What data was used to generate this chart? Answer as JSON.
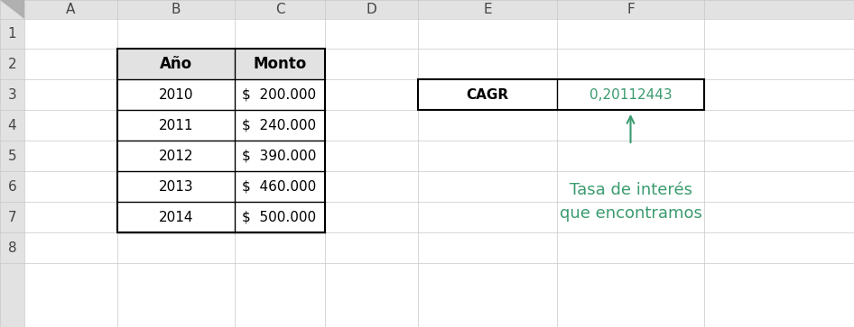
{
  "bg_color": "#ffffff",
  "grid_line_color": "#c8c8c8",
  "header_bg_color": "#e2e2e2",
  "cell_border_color": "#000000",
  "col_headers": [
    "A",
    "B",
    "C",
    "D",
    "E",
    "F"
  ],
  "row_headers": [
    "1",
    "2",
    "3",
    "4",
    "5",
    "6",
    "7",
    "8"
  ],
  "table_years": [
    "2010",
    "2011",
    "2012",
    "2013",
    "2014"
  ],
  "table_montos": [
    "$  200.000",
    "$  240.000",
    "$  390.000",
    "$  460.000",
    "$  500.000"
  ],
  "table_header_year": "Año",
  "table_header_monto": "Monto",
  "cagr_label": "CAGR",
  "cagr_value": "0,20112443",
  "cagr_value_color": "#3a9b6e",
  "annotation_text": "Tasa de interés\nque encontramos",
  "annotation_color": "#3a9b6e",
  "arrow_color": "#3a9b6e",
  "cell_fontsize": 11,
  "header_fontsize": 11,
  "annot_fontsize": 13,
  "col_starts": [
    0,
    27,
    130,
    260,
    360,
    463,
    617,
    780,
    946
  ],
  "row_starts": [
    0,
    21,
    54,
    88,
    122,
    156,
    190,
    224,
    258,
    292
  ]
}
